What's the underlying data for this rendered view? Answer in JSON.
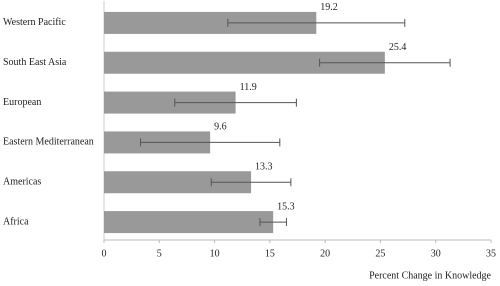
{
  "chart_data": {
    "type": "bar",
    "orientation": "horizontal",
    "x_label": "Percent Change in Knowledge",
    "categories": [
      "Western Pacific",
      "South East Asia",
      "European",
      "Eastern Mediterranean",
      "Americas",
      "Africa"
    ],
    "values": [
      19.2,
      25.4,
      11.9,
      9.6,
      13.3,
      15.3
    ],
    "errors": [
      8.0,
      5.9,
      5.5,
      6.3,
      3.6,
      1.2
    ],
    "color": "#999999",
    "xlim": [
      0,
      35
    ],
    "xticks": [
      0,
      5,
      10,
      15,
      20,
      25,
      30,
      35
    ]
  }
}
